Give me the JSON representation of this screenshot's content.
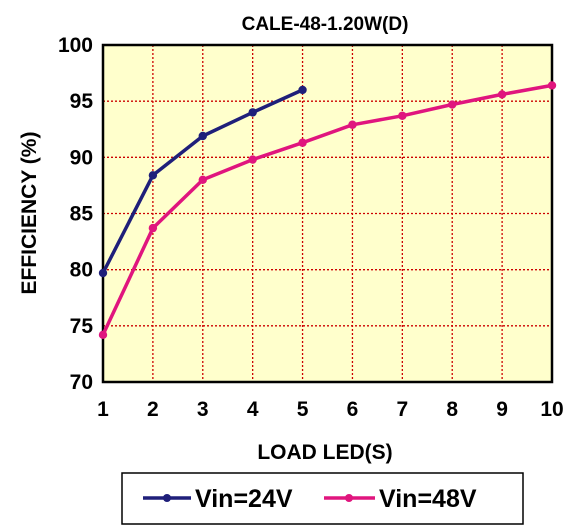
{
  "chart_data": {
    "type": "line",
    "title": "CALE-48-1.20W(D)",
    "xlabel": "LOAD LED(S)",
    "ylabel": "EFFICIENCY (%)",
    "x_ticks": [
      "1",
      "2",
      "3",
      "4",
      "5",
      "6",
      "7",
      "8",
      "9",
      "10"
    ],
    "y_ticks": [
      "70",
      "75",
      "80",
      "85",
      "90",
      "95",
      "100"
    ],
    "xlim": [
      1,
      10
    ],
    "ylim": [
      70,
      100
    ],
    "grid": true,
    "legend_position": "bottom",
    "plot_background": "#FFFFCC",
    "grid_color": "#CC0000",
    "series": [
      {
        "name": "Vin=24V",
        "color": "#1F1F7A",
        "x": [
          1,
          2,
          3,
          4,
          5
        ],
        "values": [
          79.7,
          88.4,
          91.9,
          94.0,
          96.0
        ]
      },
      {
        "name": "Vin=48V",
        "color": "#E0157E",
        "x": [
          1,
          2,
          3,
          4,
          5,
          6,
          7,
          8,
          9,
          10
        ],
        "values": [
          74.2,
          83.7,
          88.0,
          89.8,
          91.3,
          92.9,
          93.7,
          94.7,
          95.6,
          96.4
        ]
      }
    ]
  }
}
